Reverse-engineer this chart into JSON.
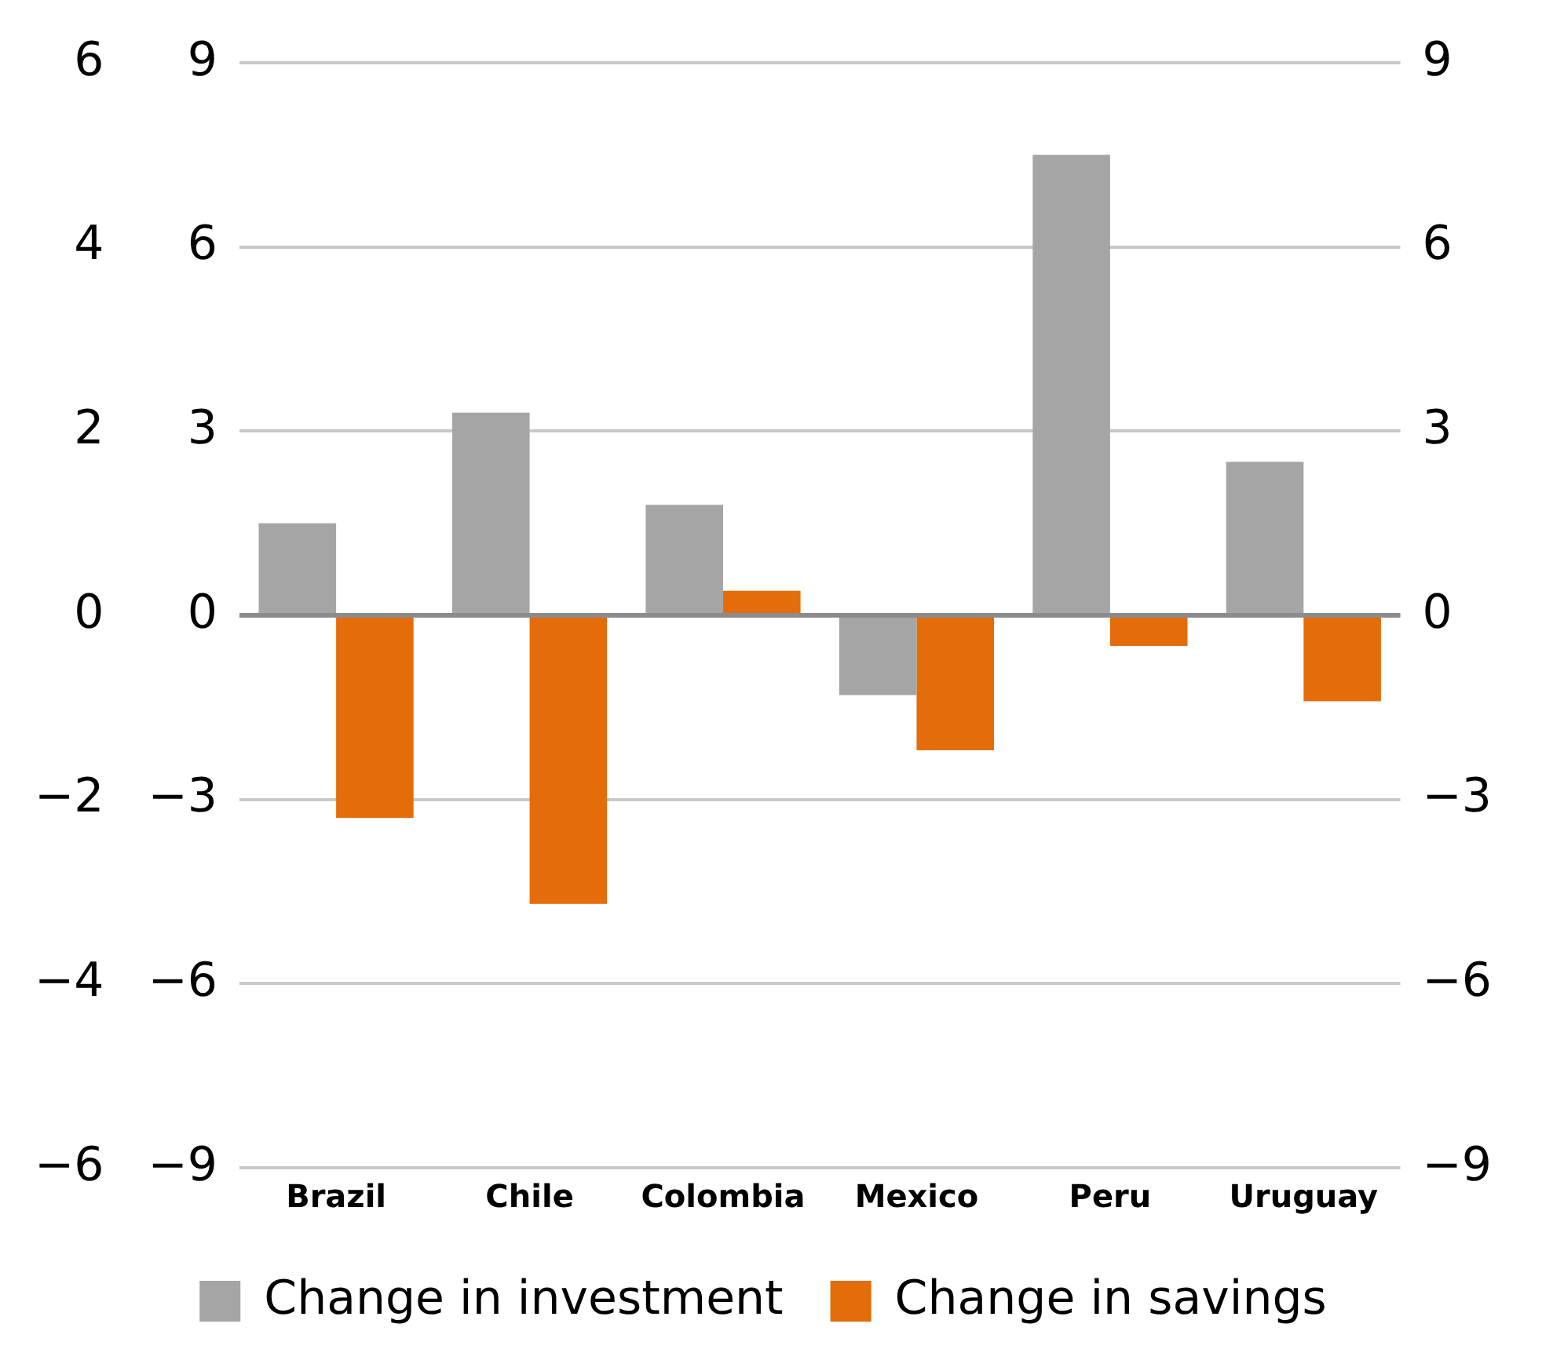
{
  "chart_data": {
    "type": "bar",
    "categories": [
      "Brazil",
      "Chile",
      "Colombia",
      "Mexico",
      "Peru",
      "Uruguay"
    ],
    "series": [
      {
        "name": "Change in investment",
        "color": "#a5a5a5",
        "values": [
          1.5,
          3.3,
          1.8,
          -1.3,
          7.5,
          2.5
        ]
      },
      {
        "name": "Change in savings",
        "color": "#e46c0a",
        "values": [
          -3.3,
          -4.7,
          0.4,
          -2.2,
          -0.5,
          -1.4
        ]
      }
    ],
    "ylim": [
      -9,
      9
    ],
    "yticks": [
      -9,
      -6,
      -3,
      0,
      3,
      6,
      9
    ],
    "y2lim": [
      -9,
      9
    ],
    "y2ticks": [
      -9,
      -6,
      -3,
      0,
      3,
      6,
      9
    ],
    "y3lim": [
      -6,
      6
    ],
    "y3ticks": [
      -6,
      -4,
      -2,
      0,
      2,
      4,
      6
    ],
    "grid": "y",
    "legend": "bottom"
  }
}
